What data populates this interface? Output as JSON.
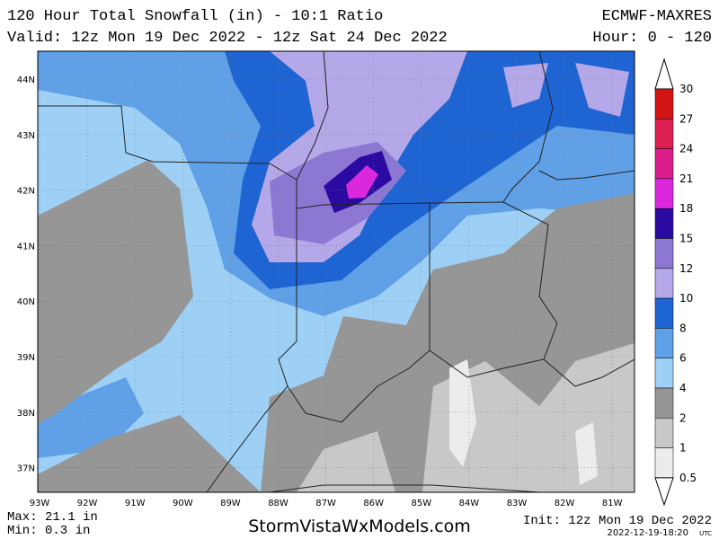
{
  "header": {
    "title": "120 Hour Total Snowfall (in) - 10:1 Ratio",
    "valid": "Valid: 12z Mon 19 Dec 2022 - 12z Sat 24 Dec 2022",
    "model": "ECMWF-MAXRES",
    "hours": "Hour: 0 - 120"
  },
  "map": {
    "lat_labels": [
      "44N",
      "43N",
      "42N",
      "41N",
      "40N",
      "39N",
      "38N",
      "37N"
    ],
    "lon_labels": [
      "93W",
      "92W",
      "91W",
      "90W",
      "89W",
      "88W",
      "87W",
      "86W",
      "85W",
      "84W",
      "83W",
      "82W",
      "81W"
    ]
  },
  "legend": {
    "labels": [
      "30",
      "27",
      "24",
      "21",
      "18",
      "15",
      "12",
      "10",
      "8",
      "6",
      "4",
      "2",
      "1",
      "0.5"
    ],
    "colors": [
      "#d21414",
      "#dc1e50",
      "#dc1e8c",
      "#dc28dc",
      "#2a0aa0",
      "#8c78d2",
      "#b4a8e8",
      "#1e64d2",
      "#5fa0e6",
      "#9ed0f5",
      "#969696",
      "#c8c8c8",
      "#ececec"
    ]
  },
  "footer": {
    "max": "Max: 21.1 in",
    "min": "Min: 0.3 in",
    "site": "StormVistaWxModels.com",
    "init": "Init: 12z Mon 19 Dec 2022",
    "stamp": "2022-12-19-18:20",
    "stamp_unit": "UTC"
  }
}
